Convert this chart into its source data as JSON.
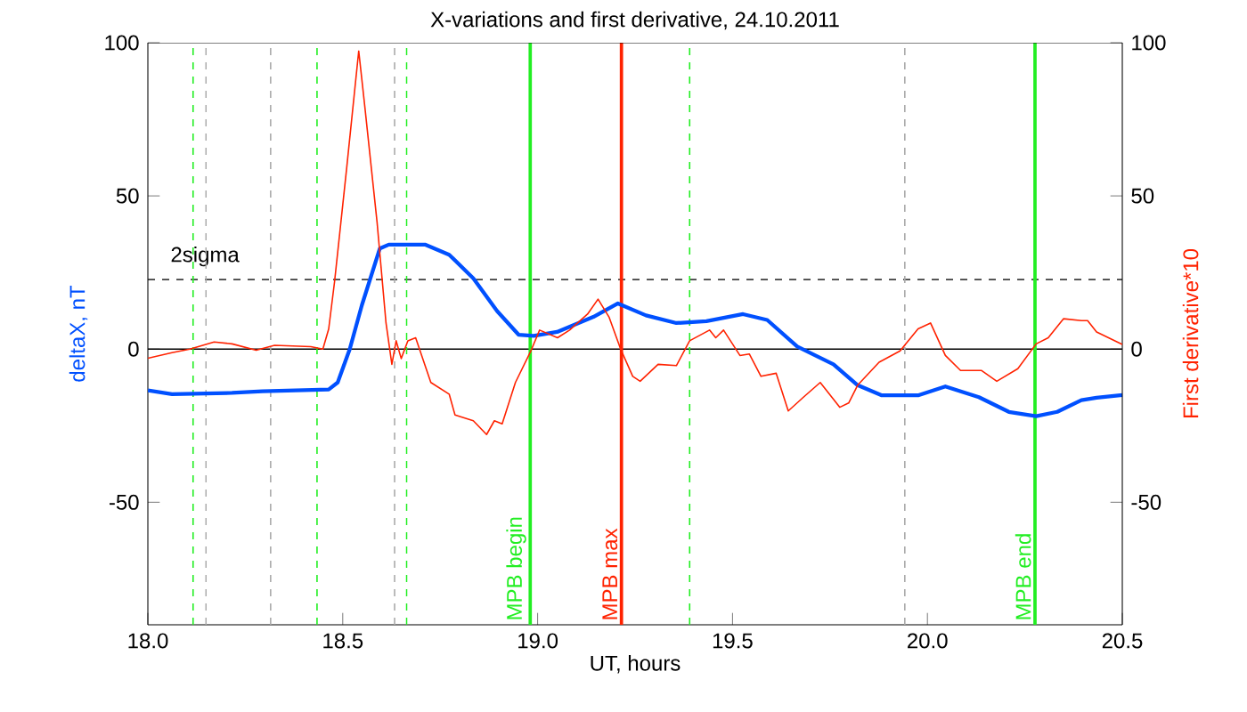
{
  "chart_data": {
    "type": "line",
    "title": "X-variations and first derivative, 24.10.2011",
    "xlabel": "UT, hours",
    "ylabel": "deltaX, nT",
    "y2label": "First derivative*10",
    "xlim": [
      18.0,
      20.5
    ],
    "xticks": [
      {
        "value": 18.0,
        "label": "18.0"
      },
      {
        "value": 18.5,
        "label": "18.5"
      },
      {
        "value": 19.0,
        "label": "19.0"
      },
      {
        "value": 19.5,
        "label": "19.5"
      },
      {
        "value": 20.0,
        "label": "20.0"
      },
      {
        "value": 20.5,
        "label": "20.5"
      }
    ],
    "ylim": [
      -90,
      100
    ],
    "yticks": [
      -50,
      0,
      50,
      100
    ],
    "y2lim": [
      -90,
      100
    ],
    "y2ticks": [
      -50,
      0,
      50,
      100
    ],
    "grid": false,
    "marker": "none",
    "series": [
      {
        "color": "#0050ff",
        "axis": "y",
        "x": [
          18.0,
          18.062,
          18.216,
          18.294,
          18.464,
          18.487,
          18.518,
          18.549,
          18.595,
          18.618,
          18.711,
          18.773,
          18.835,
          18.896,
          18.951,
          18.99,
          19.05,
          19.143,
          19.206,
          19.278,
          19.356,
          19.433,
          19.527,
          19.589,
          19.666,
          19.759,
          19.821,
          19.883,
          19.976,
          20.046,
          20.132,
          20.209,
          20.279,
          20.333,
          20.395,
          20.434,
          20.5
        ],
        "values": [
          -13.5,
          -14.7,
          -14.3,
          -13.8,
          -13.2,
          -10.9,
          0,
          14.3,
          32.8,
          34.1,
          34.1,
          30.8,
          23.1,
          12.4,
          4.7,
          4.3,
          5.6,
          10.5,
          14.9,
          11.0,
          8.5,
          9.1,
          11.4,
          9.5,
          0.8,
          -5.0,
          -11.8,
          -15.1,
          -15.1,
          -12.2,
          -15.7,
          -20.5,
          -21.9,
          -20.5,
          -16.7,
          -15.9,
          -15
        ]
      },
      {
        "color": "#ff2200",
        "axis": "y2",
        "x": [
          18.0,
          18.062,
          18.108,
          18.17,
          18.216,
          18.278,
          18.325,
          18.418,
          18.449,
          18.464,
          18.479,
          18.51,
          18.541,
          18.557,
          18.588,
          18.611,
          18.626,
          18.637,
          18.65,
          18.667,
          18.687,
          18.726,
          18.773,
          18.788,
          18.835,
          18.869,
          18.889,
          18.909,
          18.943,
          18.982,
          19.005,
          19.051,
          19.082,
          19.128,
          19.155,
          19.183,
          19.213,
          19.244,
          19.263,
          19.309,
          19.356,
          19.39,
          19.441,
          19.457,
          19.477,
          19.519,
          19.543,
          19.573,
          19.612,
          19.643,
          19.682,
          19.725,
          19.775,
          19.798,
          19.821,
          19.876,
          19.93,
          19.976,
          20.008,
          20.046,
          20.085,
          20.139,
          20.178,
          20.232,
          20.279,
          20.31,
          20.349,
          20.395,
          20.411,
          20.434,
          20.5
        ],
        "values": [
          -3,
          -1.2,
          0,
          2.3,
          1.7,
          -0.4,
          1.2,
          0.8,
          0,
          6.6,
          22,
          59,
          97.3,
          78.7,
          41.5,
          8.5,
          -5,
          2.7,
          -3.1,
          2.7,
          3.7,
          -10.9,
          -14.7,
          -21.5,
          -23.4,
          -27.9,
          -23.4,
          -24.4,
          -10.9,
          -0.8,
          6.2,
          3.7,
          6.2,
          11.4,
          16.3,
          10.5,
          0,
          -8.9,
          -10.5,
          -5,
          -5.4,
          2.7,
          6.2,
          3.7,
          6.2,
          -2.1,
          -1.6,
          -8.9,
          -7.9,
          -20.2,
          -15.7,
          -10.9,
          -19,
          -17.6,
          -11.8,
          -4.3,
          -0.6,
          6.6,
          8.5,
          -2.1,
          -7,
          -7,
          -10.5,
          -6.4,
          1.7,
          3.7,
          9.9,
          9.3,
          9.3,
          5.6,
          1.5
        ]
      }
    ],
    "ref_lines": [
      {
        "axis": "y",
        "value": 0,
        "color": "#000000",
        "line_style": "solid"
      },
      {
        "axis": "y",
        "value": 22.7,
        "label": "2sigma",
        "color": "#000000",
        "line_style": "dashed"
      },
      {
        "axis": "x",
        "value": 18.116,
        "color": "#22ee22",
        "line_style": "dashed"
      },
      {
        "axis": "x",
        "value": 18.149,
        "color": "#aaaaaa",
        "line_style": "dashed"
      },
      {
        "axis": "x",
        "value": 18.315,
        "color": "#aaaaaa",
        "line_style": "dashed"
      },
      {
        "axis": "x",
        "value": 18.434,
        "color": "#22ee22",
        "line_style": "dashed"
      },
      {
        "axis": "x",
        "value": 18.633,
        "color": "#aaaaaa",
        "line_style": "dashed"
      },
      {
        "axis": "x",
        "value": 18.664,
        "color": "#22ee22",
        "line_style": "dashed"
      },
      {
        "axis": "x",
        "value": 18.981,
        "label": "MPB begin",
        "color": "#22ee22",
        "line_style": "solid"
      },
      {
        "axis": "x",
        "value": 19.215,
        "label": "MPB max",
        "color": "#ff2200",
        "line_style": "solid"
      },
      {
        "axis": "x",
        "value": 19.39,
        "color": "#22ee22",
        "line_style": "dashed"
      },
      {
        "axis": "x",
        "value": 19.942,
        "color": "#aaaaaa",
        "line_style": "dashed"
      },
      {
        "axis": "x",
        "value": 20.276,
        "label": "MPB end",
        "color": "#22ee22",
        "line_style": "solid"
      }
    ]
  }
}
